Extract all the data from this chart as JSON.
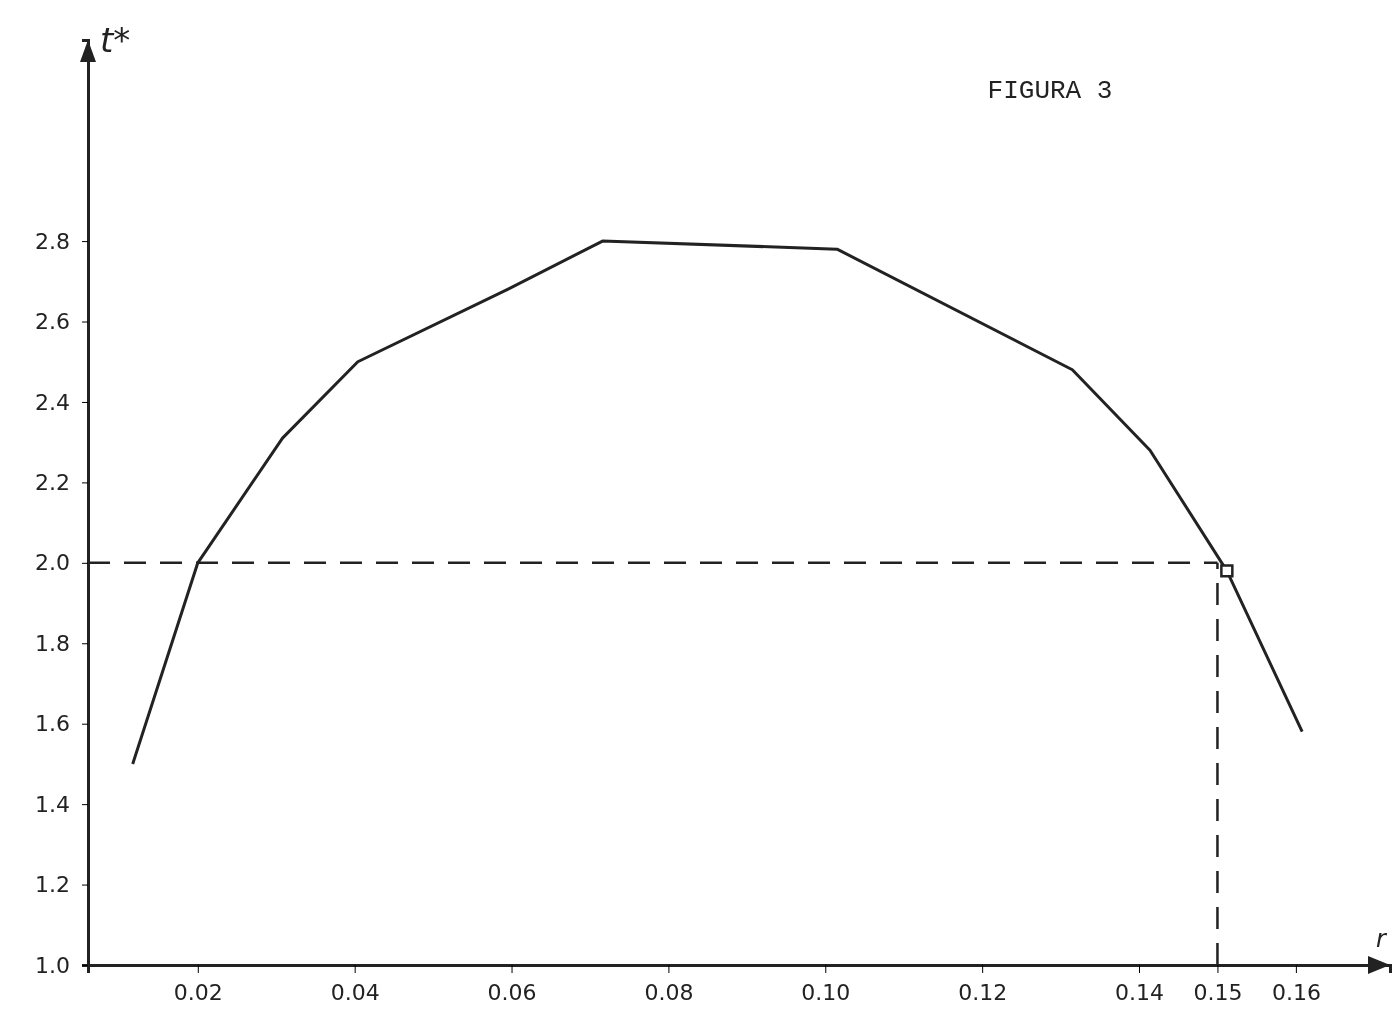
{
  "chart_data": {
    "type": "line",
    "title": "FIGURA 3",
    "xlabel": "r",
    "ylabel": "t*",
    "xlim": [
      0.006,
      0.172
    ],
    "ylim": [
      1.0,
      3.3
    ],
    "xticks": [
      0.02,
      0.04,
      0.06,
      0.08,
      {
        "value": 0.1,
        "label": "0.10"
      },
      0.12,
      0.14,
      0.15,
      0.16
    ],
    "yticks": [
      {
        "value": 1,
        "label": "1.0"
      },
      1.2,
      1.4,
      1.6,
      1.8,
      {
        "value": 2,
        "label": "2.0"
      },
      2.2,
      2.4,
      2.6,
      2.8
    ],
    "series": [
      {
        "color": "#222222",
        "x": [
          0.0117,
          0.02,
          0.0308,
          0.0404,
          0.0595,
          0.0716,
          0.1015,
          0.1315,
          0.1414,
          0.1512,
          0.1608
        ],
        "values": [
          1.5,
          2.0,
          2.31,
          2.5,
          2.68,
          2.8,
          2.78,
          2.48,
          2.28,
          1.98,
          1.58
        ]
      },
      {
        "type": "scatter",
        "color": "#222222",
        "marker": "square",
        "x": [
          0.1512
        ],
        "values": [
          1.98
        ]
      }
    ],
    "ref_lines": [
      {
        "axis": "y",
        "value": 2.0,
        "line_style": "dashed",
        "color": "#222222"
      },
      {
        "axis": "x",
        "value": 0.15,
        "line_style": "dashed",
        "color": "#222222"
      }
    ],
    "grid": false
  }
}
